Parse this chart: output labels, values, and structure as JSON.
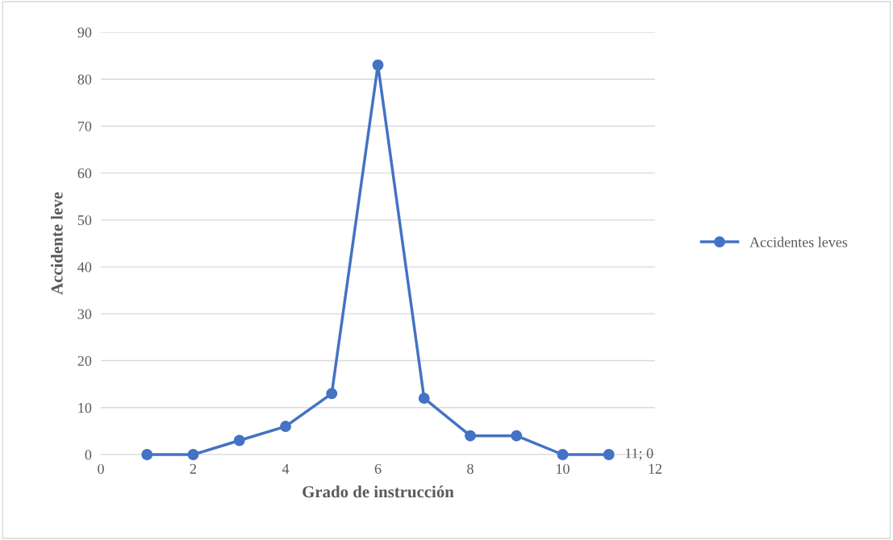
{
  "chart_data": {
    "type": "line",
    "xlabel": "Grado de instrucción",
    "ylabel": "Accidente leve",
    "x": [
      1,
      2,
      3,
      4,
      5,
      6,
      7,
      8,
      9,
      10,
      11
    ],
    "series": [
      {
        "name": "Accidentes leves",
        "color": "#4472c4",
        "values": [
          0,
          0,
          3,
          6,
          13,
          83,
          12,
          4,
          4,
          0,
          0
        ]
      }
    ],
    "xlim": [
      0,
      12
    ],
    "xticks": [
      0,
      2,
      4,
      6,
      8,
      10,
      12
    ],
    "ylim": [
      0,
      90
    ],
    "yticks": [
      0,
      10,
      20,
      30,
      40,
      50,
      60,
      70,
      80,
      90
    ],
    "grid": "y",
    "legend": "right",
    "marker": "circle",
    "line_style": "solid",
    "annotations": [
      {
        "text": "11; 0",
        "x": 11,
        "y": 0
      }
    ]
  }
}
